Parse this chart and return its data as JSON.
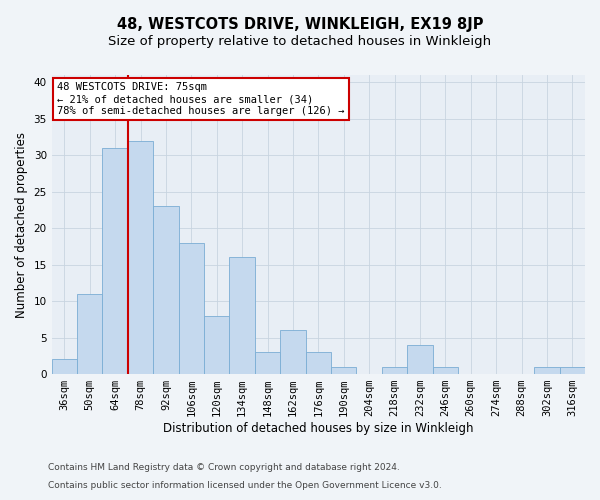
{
  "title": "48, WESTCOTS DRIVE, WINKLEIGH, EX19 8JP",
  "subtitle": "Size of property relative to detached houses in Winkleigh",
  "xlabel": "Distribution of detached houses by size in Winkleigh",
  "ylabel": "Number of detached properties",
  "categories": [
    "36sqm",
    "50sqm",
    "64sqm",
    "78sqm",
    "92sqm",
    "106sqm",
    "120sqm",
    "134sqm",
    "148sqm",
    "162sqm",
    "176sqm",
    "190sqm",
    "204sqm",
    "218sqm",
    "232sqm",
    "246sqm",
    "260sqm",
    "274sqm",
    "288sqm",
    "302sqm",
    "316sqm"
  ],
  "values": [
    2,
    11,
    31,
    32,
    23,
    18,
    8,
    16,
    3,
    6,
    3,
    1,
    0,
    1,
    4,
    1,
    0,
    0,
    0,
    1,
    1
  ],
  "bar_color": "#c5d9ee",
  "bar_edge_color": "#7aadd4",
  "bar_linewidth": 0.6,
  "grid_color": "#c8d4e0",
  "background_color": "#f0f4f8",
  "axes_bg_color": "#e8eef5",
  "red_line_x": 2.5,
  "annotation_text": "48 WESTCOTS DRIVE: 75sqm\n← 21% of detached houses are smaller (34)\n78% of semi-detached houses are larger (126) →",
  "annotation_box_color": "white",
  "annotation_edge_color": "#cc0000",
  "red_line_color": "#cc0000",
  "ylim": [
    0,
    41
  ],
  "yticks": [
    0,
    5,
    10,
    15,
    20,
    25,
    30,
    35,
    40
  ],
  "footer_line1": "Contains HM Land Registry data © Crown copyright and database right 2024.",
  "footer_line2": "Contains public sector information licensed under the Open Government Licence v3.0.",
  "title_fontsize": 10.5,
  "subtitle_fontsize": 9.5,
  "xlabel_fontsize": 8.5,
  "ylabel_fontsize": 8.5,
  "tick_fontsize": 7.5,
  "annotation_fontsize": 7.5,
  "footer_fontsize": 6.5
}
